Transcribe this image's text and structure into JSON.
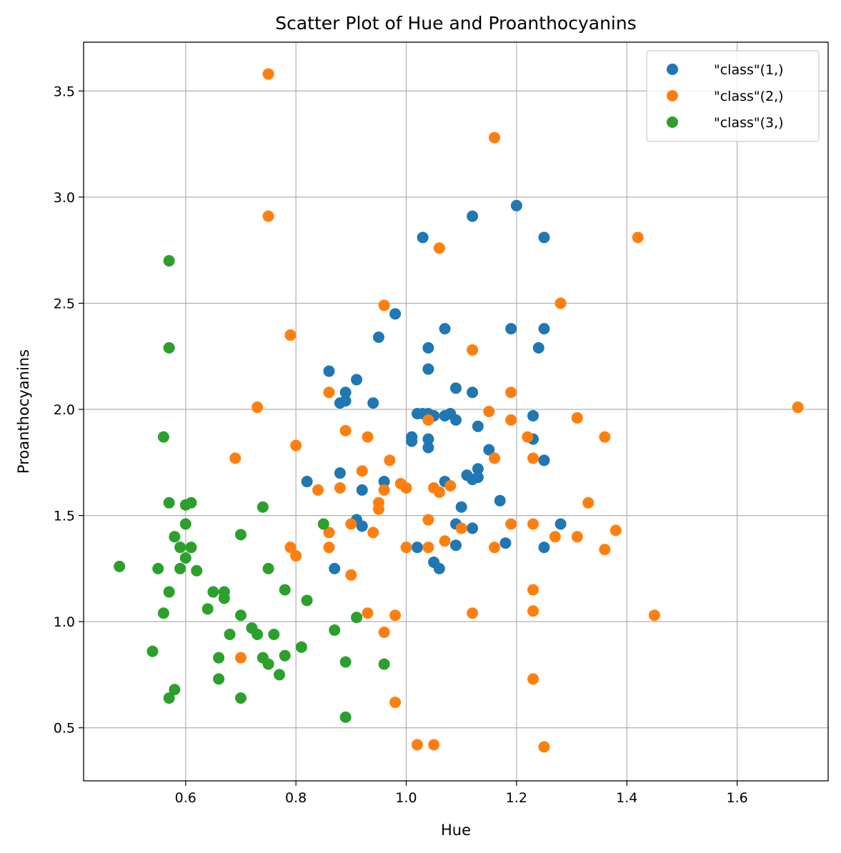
{
  "chart_data": {
    "type": "scatter",
    "title": "Scatter Plot of Hue and Proanthocyanins",
    "xlabel": "Hue",
    "ylabel": "Proanthocyanins",
    "xlim": [
      0.415,
      1.765
    ],
    "ylim": [
      0.25,
      3.73
    ],
    "xticks": [
      0.6,
      0.8,
      1.0,
      1.2,
      1.4,
      1.6
    ],
    "xtick_labels": [
      "0.6",
      "0.8",
      "1.0",
      "1.2",
      "1.4",
      "1.6"
    ],
    "yticks": [
      0.5,
      1.0,
      1.5,
      2.0,
      2.5,
      3.0,
      3.5
    ],
    "ytick_labels": [
      "0.5",
      "1.0",
      "1.5",
      "2.0",
      "2.5",
      "3.0",
      "3.5"
    ],
    "grid": true,
    "legend_position": "top-right",
    "series": [
      {
        "name": "\"class\"(1,)",
        "color": "#1f77b4",
        "points": [
          [
            1.2,
            2.96
          ],
          [
            1.03,
            2.81
          ],
          [
            1.12,
            2.91
          ],
          [
            1.25,
            2.81
          ],
          [
            0.98,
            2.45
          ],
          [
            0.95,
            2.34
          ],
          [
            1.07,
            2.38
          ],
          [
            1.19,
            2.38
          ],
          [
            1.25,
            2.38
          ],
          [
            1.04,
            2.29
          ],
          [
            1.24,
            2.29
          ],
          [
            0.86,
            2.18
          ],
          [
            1.04,
            2.19
          ],
          [
            0.91,
            2.14
          ],
          [
            1.09,
            2.1
          ],
          [
            0.89,
            2.08
          ],
          [
            1.12,
            2.08
          ],
          [
            0.88,
            2.03
          ],
          [
            0.89,
            2.04
          ],
          [
            0.94,
            2.03
          ],
          [
            1.02,
            1.98
          ],
          [
            1.03,
            1.98
          ],
          [
            1.04,
            1.98
          ],
          [
            1.05,
            1.97
          ],
          [
            1.07,
            1.97
          ],
          [
            1.08,
            1.98
          ],
          [
            1.09,
            1.95
          ],
          [
            1.23,
            1.97
          ],
          [
            1.13,
            1.92
          ],
          [
            1.01,
            1.87
          ],
          [
            1.01,
            1.85
          ],
          [
            1.04,
            1.86
          ],
          [
            1.04,
            1.82
          ],
          [
            1.23,
            1.86
          ],
          [
            1.15,
            1.81
          ],
          [
            1.25,
            1.76
          ],
          [
            1.13,
            1.72
          ],
          [
            0.88,
            1.7
          ],
          [
            1.11,
            1.69
          ],
          [
            1.12,
            1.67
          ],
          [
            1.13,
            1.68
          ],
          [
            0.82,
            1.66
          ],
          [
            0.96,
            1.66
          ],
          [
            1.07,
            1.66
          ],
          [
            0.92,
            1.62
          ],
          [
            1.17,
            1.57
          ],
          [
            1.1,
            1.54
          ],
          [
            0.91,
            1.48
          ],
          [
            0.92,
            1.45
          ],
          [
            1.09,
            1.46
          ],
          [
            1.12,
            1.44
          ],
          [
            1.28,
            1.46
          ],
          [
            1.02,
            1.35
          ],
          [
            1.09,
            1.36
          ],
          [
            1.18,
            1.37
          ],
          [
            1.25,
            1.35
          ],
          [
            1.05,
            1.28
          ],
          [
            0.87,
            1.25
          ],
          [
            1.06,
            1.25
          ]
        ]
      },
      {
        "name": "\"class\"(2,)",
        "color": "#ff7f0e",
        "points": [
          [
            0.75,
            3.58
          ],
          [
            1.16,
            3.28
          ],
          [
            0.75,
            2.91
          ],
          [
            1.42,
            2.81
          ],
          [
            1.06,
            2.76
          ],
          [
            0.96,
            2.49
          ],
          [
            1.28,
            2.5
          ],
          [
            0.79,
            2.35
          ],
          [
            1.12,
            2.28
          ],
          [
            0.86,
            2.08
          ],
          [
            1.19,
            2.08
          ],
          [
            0.73,
            2.01
          ],
          [
            1.71,
            2.01
          ],
          [
            1.15,
            1.99
          ],
          [
            1.04,
            1.95
          ],
          [
            1.19,
            1.95
          ],
          [
            1.31,
            1.96
          ],
          [
            0.89,
            1.9
          ],
          [
            0.93,
            1.87
          ],
          [
            1.22,
            1.87
          ],
          [
            1.36,
            1.87
          ],
          [
            0.8,
            1.83
          ],
          [
            0.69,
            1.77
          ],
          [
            0.97,
            1.76
          ],
          [
            1.16,
            1.77
          ],
          [
            1.23,
            1.77
          ],
          [
            0.92,
            1.71
          ],
          [
            0.99,
            1.65
          ],
          [
            0.84,
            1.62
          ],
          [
            0.88,
            1.63
          ],
          [
            0.96,
            1.62
          ],
          [
            1.0,
            1.63
          ],
          [
            1.05,
            1.63
          ],
          [
            1.06,
            1.61
          ],
          [
            1.08,
            1.64
          ],
          [
            0.95,
            1.56
          ],
          [
            0.95,
            1.53
          ],
          [
            1.33,
            1.56
          ],
          [
            1.04,
            1.48
          ],
          [
            0.9,
            1.46
          ],
          [
            1.1,
            1.44
          ],
          [
            1.19,
            1.46
          ],
          [
            1.23,
            1.46
          ],
          [
            0.86,
            1.42
          ],
          [
            0.94,
            1.42
          ],
          [
            1.27,
            1.4
          ],
          [
            1.31,
            1.4
          ],
          [
            1.38,
            1.43
          ],
          [
            0.86,
            1.35
          ],
          [
            1.0,
            1.35
          ],
          [
            1.04,
            1.35
          ],
          [
            1.07,
            1.38
          ],
          [
            1.16,
            1.35
          ],
          [
            1.36,
            1.34
          ],
          [
            0.79,
            1.35
          ],
          [
            0.8,
            1.31
          ],
          [
            0.9,
            1.22
          ],
          [
            1.23,
            1.15
          ],
          [
            0.93,
            1.04
          ],
          [
            0.98,
            1.03
          ],
          [
            1.12,
            1.04
          ],
          [
            1.23,
            1.05
          ],
          [
            1.45,
            1.03
          ],
          [
            0.96,
            0.95
          ],
          [
            0.7,
            0.83
          ],
          [
            1.23,
            0.73
          ],
          [
            0.98,
            0.62
          ],
          [
            1.02,
            0.42
          ],
          [
            1.05,
            0.42
          ],
          [
            1.25,
            0.41
          ]
        ]
      },
      {
        "name": "\"class\"(3,)",
        "color": "#2ca02c",
        "points": [
          [
            0.57,
            2.7
          ],
          [
            0.57,
            2.29
          ],
          [
            0.56,
            1.87
          ],
          [
            0.57,
            1.56
          ],
          [
            0.6,
            1.55
          ],
          [
            0.61,
            1.56
          ],
          [
            0.74,
            1.54
          ],
          [
            0.6,
            1.46
          ],
          [
            0.85,
            1.46
          ],
          [
            0.58,
            1.4
          ],
          [
            0.7,
            1.41
          ],
          [
            0.59,
            1.35
          ],
          [
            0.61,
            1.35
          ],
          [
            0.6,
            1.3
          ],
          [
            0.48,
            1.26
          ],
          [
            0.55,
            1.25
          ],
          [
            0.59,
            1.25
          ],
          [
            0.62,
            1.24
          ],
          [
            0.75,
            1.25
          ],
          [
            0.57,
            1.14
          ],
          [
            0.65,
            1.14
          ],
          [
            0.67,
            1.14
          ],
          [
            0.67,
            1.11
          ],
          [
            0.78,
            1.15
          ],
          [
            0.82,
            1.1
          ],
          [
            0.56,
            1.04
          ],
          [
            0.64,
            1.06
          ],
          [
            0.7,
            1.03
          ],
          [
            0.91,
            1.02
          ],
          [
            0.72,
            0.97
          ],
          [
            0.73,
            0.94
          ],
          [
            0.68,
            0.94
          ],
          [
            0.76,
            0.94
          ],
          [
            0.87,
            0.96
          ],
          [
            0.81,
            0.88
          ],
          [
            0.54,
            0.86
          ],
          [
            0.66,
            0.83
          ],
          [
            0.74,
            0.83
          ],
          [
            0.75,
            0.8
          ],
          [
            0.78,
            0.84
          ],
          [
            0.89,
            0.81
          ],
          [
            0.96,
            0.8
          ],
          [
            0.77,
            0.75
          ],
          [
            0.66,
            0.73
          ],
          [
            0.58,
            0.68
          ],
          [
            0.57,
            0.64
          ],
          [
            0.7,
            0.64
          ],
          [
            0.89,
            0.55
          ]
        ]
      }
    ]
  }
}
